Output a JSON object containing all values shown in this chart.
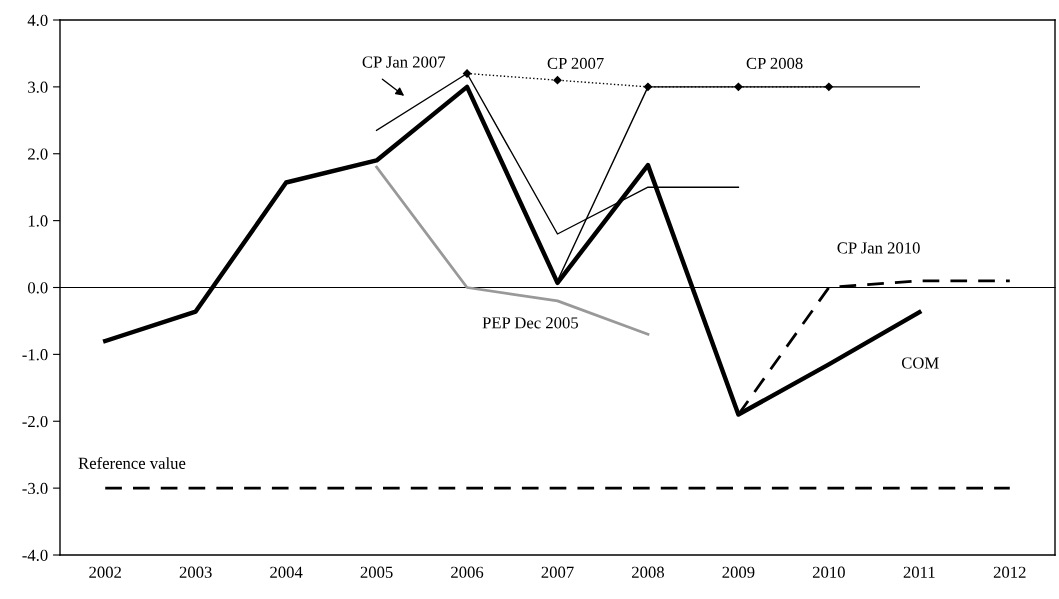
{
  "chart_data": {
    "type": "line",
    "categories": [
      "2002",
      "2003",
      "2004",
      "2005",
      "2006",
      "2007",
      "2008",
      "2009",
      "2010",
      "2011",
      "2012"
    ],
    "series": [
      {
        "name": "COM",
        "color": "#000000",
        "values": [
          -0.8,
          -0.36,
          1.57,
          1.9,
          3.0,
          0.07,
          1.83,
          -1.9,
          -1.15,
          -0.37,
          null
        ],
        "line_style": "solid"
      },
      {
        "name": "CP Jan 2007",
        "color": "#000000",
        "values": [
          null,
          null,
          null,
          2.35,
          3.2,
          0.8,
          1.5,
          1.5,
          null,
          null,
          null
        ],
        "line_style": "solid"
      },
      {
        "name": "CP 2007",
        "color": "#000000",
        "values": [
          null,
          null,
          null,
          null,
          3.2,
          3.1,
          3.0,
          3.0,
          3.0,
          null,
          null
        ],
        "line_style": "dotted",
        "marker": "diamond"
      },
      {
        "name": "CP 2008",
        "color": "#000000",
        "values": [
          null,
          null,
          null,
          null,
          null,
          0.1,
          3.0,
          3.0,
          3.0,
          3.0,
          null
        ],
        "line_style": "solid"
      },
      {
        "name": "PEP Dec 2005",
        "color": "#999999",
        "values": [
          null,
          null,
          null,
          1.8,
          0.0,
          -0.2,
          -0.7,
          null,
          null,
          null,
          null
        ],
        "line_style": "solid"
      },
      {
        "name": "CP Jan 2010",
        "color": "#000000",
        "values": [
          null,
          null,
          null,
          null,
          null,
          null,
          null,
          -1.9,
          0.0,
          0.1,
          0.1
        ],
        "line_style": "dashed"
      },
      {
        "name": "Reference value",
        "color": "#000000",
        "values": [
          -3.0,
          -3.0,
          -3.0,
          -3.0,
          -3.0,
          -3.0,
          -3.0,
          -3.0,
          -3.0,
          -3.0,
          -3.0
        ],
        "line_style": "dashed"
      }
    ],
    "ylim": [
      -4.0,
      4.0
    ],
    "yticks": [
      {
        "value": -4,
        "label": "-4.0"
      },
      {
        "value": -3,
        "label": "-3.0"
      },
      {
        "value": -2,
        "label": "-2.0"
      },
      {
        "value": -1,
        "label": "-1.0"
      },
      {
        "value": 0,
        "label": "0.0"
      },
      {
        "value": 1,
        "label": "1.0"
      },
      {
        "value": 2,
        "label": "2.0"
      },
      {
        "value": 3,
        "label": "3.0"
      },
      {
        "value": 4,
        "label": "4.0"
      }
    ],
    "grid": false,
    "legend": false
  }
}
